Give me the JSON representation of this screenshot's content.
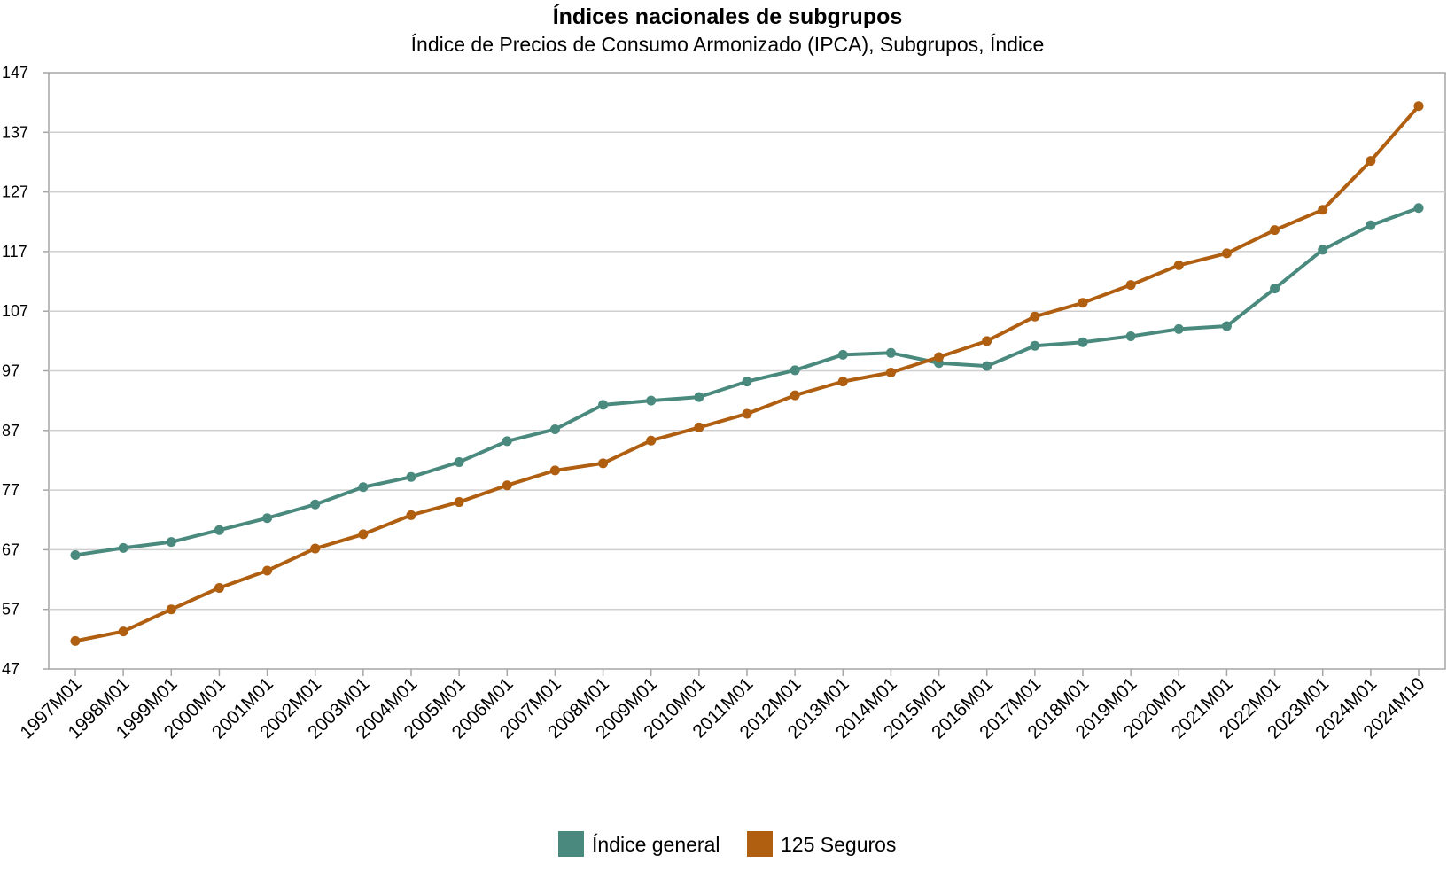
{
  "chart_data": {
    "type": "line",
    "title": "Índices nacionales de subgrupos",
    "subtitle": "Índice de Precios de Consumo Armonizado (IPCA), Subgrupos, Índice",
    "xlabel": "",
    "ylabel": "",
    "ylim": [
      47,
      147
    ],
    "yticks": [
      47,
      57,
      67,
      77,
      87,
      97,
      107,
      117,
      127,
      137,
      147
    ],
    "grid": true,
    "legend_position": "bottom",
    "categories": [
      "1997M01",
      "1998M01",
      "1999M01",
      "2000M01",
      "2001M01",
      "2002M01",
      "2003M01",
      "2004M01",
      "2005M01",
      "2006M01",
      "2007M01",
      "2008M01",
      "2009M01",
      "2010M01",
      "2011M01",
      "2012M01",
      "2013M01",
      "2014M01",
      "2015M01",
      "2016M01",
      "2017M01",
      "2018M01",
      "2019M01",
      "2020M01",
      "2021M01",
      "2022M01",
      "2023M01",
      "2024M01",
      "2024M10"
    ],
    "series": [
      {
        "name": "Índice general",
        "color": "#4a8a7e",
        "values": [
          66.1,
          67.3,
          68.3,
          70.3,
          72.3,
          74.6,
          77.5,
          79.2,
          81.7,
          85.2,
          87.2,
          91.3,
          92.0,
          92.6,
          95.2,
          97.1,
          99.7,
          100.0,
          98.3,
          97.8,
          101.2,
          101.8,
          102.8,
          104.0,
          104.5,
          110.8,
          117.3,
          121.4,
          124.3
        ]
      },
      {
        "name": "125 Seguros",
        "color": "#b05f11",
        "values": [
          51.7,
          53.3,
          57.0,
          60.6,
          63.5,
          67.2,
          69.6,
          72.8,
          75.0,
          77.8,
          80.3,
          81.5,
          85.3,
          87.5,
          89.8,
          92.9,
          95.2,
          96.7,
          99.3,
          102.0,
          106.1,
          108.4,
          111.4,
          114.7,
          116.7,
          120.6,
          124.0,
          132.2,
          141.4
        ]
      }
    ]
  }
}
